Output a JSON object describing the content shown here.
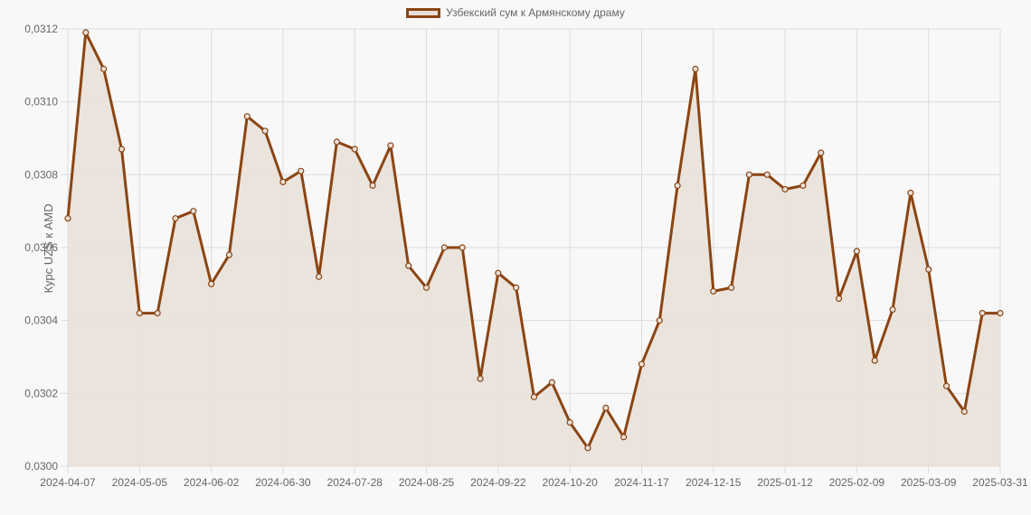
{
  "legend": {
    "label": "Узбекский сум к Армянскому драму",
    "swatch_border": "#8b4513",
    "swatch_fill": "#e8e0d8"
  },
  "chart_data": {
    "type": "area",
    "title": "",
    "xlabel": "",
    "ylabel": "Курс UZS к AMD",
    "ylim": [
      0.03,
      0.0312
    ],
    "yticks": [
      "0,0300",
      "0,0302",
      "0,0304",
      "0,0306",
      "0,0308",
      "0,0310",
      "0,0312"
    ],
    "xtick_labels": [
      "2024-04-07",
      "2024-05-05",
      "2024-06-02",
      "2024-06-30",
      "2024-07-28",
      "2024-08-25",
      "2024-09-22",
      "2024-10-20",
      "2024-11-17",
      "2024-12-15",
      "2025-01-12",
      "2025-02-09",
      "2025-03-09",
      "2025-03-31"
    ],
    "grid": true,
    "legend_position": "top",
    "series": [
      {
        "name": "Узбекский сум к Армянскому драму",
        "line_color": "#8b4513",
        "fill_color": "#e8e0d8",
        "x": [
          "2024-04-07",
          "2024-04-14",
          "2024-04-21",
          "2024-04-28",
          "2024-05-05",
          "2024-05-12",
          "2024-05-19",
          "2024-05-26",
          "2024-06-02",
          "2024-06-09",
          "2024-06-16",
          "2024-06-23",
          "2024-06-30",
          "2024-07-07",
          "2024-07-14",
          "2024-07-21",
          "2024-07-28",
          "2024-08-04",
          "2024-08-11",
          "2024-08-18",
          "2024-08-25",
          "2024-09-01",
          "2024-09-08",
          "2024-09-15",
          "2024-09-22",
          "2024-09-29",
          "2024-10-06",
          "2024-10-13",
          "2024-10-20",
          "2024-10-27",
          "2024-11-03",
          "2024-11-10",
          "2024-11-17",
          "2024-11-24",
          "2024-12-01",
          "2024-12-08",
          "2024-12-15",
          "2024-12-22",
          "2024-12-29",
          "2025-01-05",
          "2025-01-12",
          "2025-01-19",
          "2025-01-26",
          "2025-02-02",
          "2025-02-09",
          "2025-02-16",
          "2025-02-23",
          "2025-03-02",
          "2025-03-09",
          "2025-03-16",
          "2025-03-23",
          "2025-03-30",
          "2025-03-31"
        ],
        "values": [
          0.03068,
          0.03119,
          0.03109,
          0.03087,
          0.03042,
          0.03042,
          0.03068,
          0.0307,
          0.0305,
          0.03058,
          0.03096,
          0.03092,
          0.03078,
          0.03081,
          0.03052,
          0.03089,
          0.03087,
          0.03077,
          0.03088,
          0.03055,
          0.03049,
          0.0306,
          0.0306,
          0.03024,
          0.03053,
          0.03049,
          0.03019,
          0.03023,
          0.03012,
          0.03005,
          0.03016,
          0.03008,
          0.03028,
          0.0304,
          0.03077,
          0.03109,
          0.03048,
          0.03049,
          0.0308,
          0.0308,
          0.03076,
          0.03077,
          0.03086,
          0.03046,
          0.03059,
          0.03029,
          0.03043,
          0.03075,
          0.03054,
          0.03022,
          0.03015,
          0.03042,
          0.03042
        ]
      }
    ]
  }
}
